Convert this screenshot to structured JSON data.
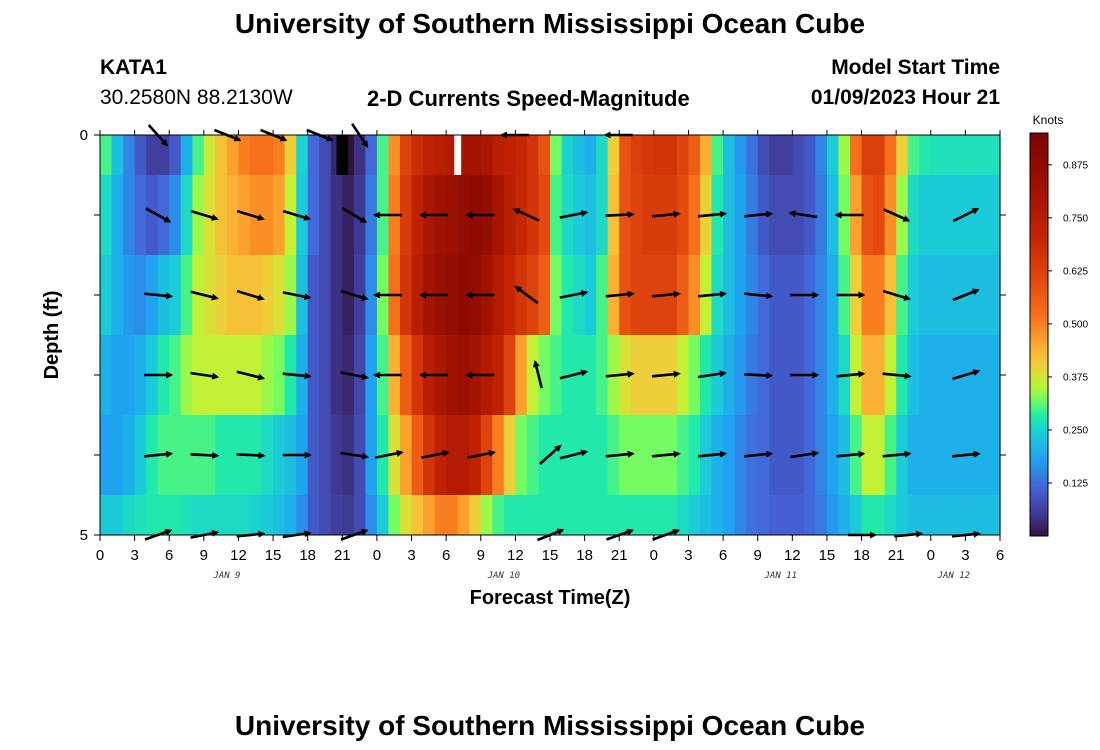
{
  "header": {
    "title": "University of Southern Mississippi Ocean Cube",
    "station_id": "KATA1",
    "station_coords": "30.2580N  88.2130W",
    "plot_title": "2-D Currents Speed-Magnitude",
    "model_start_label": "Model Start Time",
    "model_start_value": "01/09/2023 Hour 21"
  },
  "footer": {
    "title": "University of Southern Mississippi Ocean Cube"
  },
  "chart_data": {
    "type": "heatmap",
    "title": "2-D Currents Speed-Magnitude",
    "xlabel": "Forecast Time(Z)",
    "ylabel": "Depth (ft)",
    "colorbar_label": "Knots",
    "colorbar_ticks": [
      0.125,
      0.25,
      0.375,
      0.5,
      0.625,
      0.75,
      0.875
    ],
    "colorbar_tick_labels": [
      "0.125",
      "0.250",
      "0.375",
      "0.500",
      "0.625",
      "0.750",
      "0.875"
    ],
    "colorbar_range": [
      0,
      0.95
    ],
    "ylim": [
      0,
      5
    ],
    "y_tick_labels": [
      {
        "v": 0,
        "label": "0"
      },
      {
        "v": 5,
        "label": "5"
      }
    ],
    "y_minor_ticks": [
      1,
      2,
      3,
      4
    ],
    "xlim": [
      0,
      78
    ],
    "x_tick_hours": [
      0,
      3,
      6,
      9,
      12,
      15,
      18,
      21,
      24,
      27,
      30,
      33,
      36,
      39,
      42,
      45,
      48,
      51,
      54,
      57,
      60,
      63,
      66,
      69,
      72,
      75,
      78
    ],
    "x_tick_labels": [
      "0",
      "3",
      "6",
      "9",
      "12",
      "15",
      "18",
      "21",
      "0",
      "3",
      "6",
      "9",
      "12",
      "15",
      "18",
      "21",
      "0",
      "3",
      "6",
      "9",
      "12",
      "15",
      "18",
      "21",
      "0",
      "3",
      "6"
    ],
    "day_labels": [
      {
        "hour": 11,
        "label": "JAN 9"
      },
      {
        "hour": 35,
        "label": "JAN 10"
      },
      {
        "hour": 59,
        "label": "JAN 11"
      },
      {
        "hour": 74,
        "label": "JAN 12"
      }
    ],
    "depth_layers": [
      {
        "top": 0,
        "bottom": 0.5,
        "label_depth": 0
      },
      {
        "top": 0.5,
        "bottom": 1.5,
        "label_depth": 1
      },
      {
        "top": 1.5,
        "bottom": 2.5,
        "label_depth": 2
      },
      {
        "top": 2.5,
        "bottom": 3.5,
        "label_depth": 3
      },
      {
        "top": 3.5,
        "bottom": 4.5,
        "label_depth": 4
      },
      {
        "top": 4.5,
        "bottom": 5,
        "label_depth": 5
      }
    ],
    "speed_hours": [
      0,
      1,
      2,
      3,
      4,
      5,
      6,
      7,
      8,
      9,
      10,
      11,
      12,
      13,
      14,
      15,
      16,
      17,
      18,
      19,
      20,
      21,
      22,
      23,
      24,
      25,
      26,
      27,
      28,
      29,
      30,
      31,
      32,
      33,
      34,
      35,
      36,
      37,
      38,
      39,
      40,
      41,
      42,
      43,
      44,
      45,
      46,
      47,
      48,
      49,
      50,
      51,
      52,
      53,
      54,
      55,
      56,
      57,
      58,
      59,
      60,
      61,
      62,
      63,
      64,
      65,
      66,
      67,
      68,
      69,
      70,
      71,
      72,
      73,
      74,
      75,
      76,
      77
    ],
    "speed_knots": [
      [
        0.3,
        0.22,
        0.15,
        0.1,
        0.06,
        0.06,
        0.1,
        0.2,
        0.3,
        0.37,
        0.42,
        0.46,
        0.5,
        0.52,
        0.52,
        0.5,
        0.4,
        0.25,
        0.12,
        0.08,
        0.03,
        0.0,
        0.04,
        0.12,
        0.3,
        0.48,
        0.62,
        0.68,
        0.72,
        0.74,
        0.76,
        0.8,
        0.8,
        0.78,
        0.74,
        0.72,
        0.7,
        0.66,
        0.58,
        0.32,
        0.25,
        0.22,
        0.2,
        0.26,
        0.4,
        0.58,
        0.63,
        0.65,
        0.66,
        0.66,
        0.62,
        0.56,
        0.44,
        0.3,
        0.22,
        0.17,
        0.13,
        0.08,
        0.06,
        0.06,
        0.08,
        0.1,
        0.15,
        0.24,
        0.34,
        0.52,
        0.63,
        0.63,
        0.52,
        0.4,
        0.3,
        0.28,
        0.27,
        0.27,
        0.27,
        0.27,
        0.27,
        0.27
      ],
      [
        0.26,
        0.2,
        0.15,
        0.12,
        0.1,
        0.12,
        0.16,
        0.26,
        0.34,
        0.38,
        0.42,
        0.44,
        0.46,
        0.48,
        0.48,
        0.46,
        0.36,
        0.24,
        0.12,
        0.08,
        0.04,
        0.02,
        0.05,
        0.14,
        0.3,
        0.5,
        0.64,
        0.72,
        0.78,
        0.82,
        0.84,
        0.86,
        0.88,
        0.86,
        0.8,
        0.74,
        0.7,
        0.66,
        0.6,
        0.3,
        0.26,
        0.24,
        0.22,
        0.26,
        0.42,
        0.58,
        0.62,
        0.64,
        0.64,
        0.64,
        0.6,
        0.52,
        0.4,
        0.28,
        0.22,
        0.18,
        0.14,
        0.1,
        0.08,
        0.08,
        0.08,
        0.1,
        0.14,
        0.22,
        0.32,
        0.46,
        0.58,
        0.6,
        0.48,
        0.34,
        0.26,
        0.24,
        0.24,
        0.24,
        0.24,
        0.24,
        0.24,
        0.24
      ],
      [
        0.24,
        0.2,
        0.17,
        0.16,
        0.18,
        0.22,
        0.24,
        0.3,
        0.36,
        0.38,
        0.4,
        0.42,
        0.42,
        0.42,
        0.4,
        0.38,
        0.34,
        0.22,
        0.1,
        0.08,
        0.04,
        0.02,
        0.06,
        0.16,
        0.32,
        0.52,
        0.66,
        0.74,
        0.8,
        0.84,
        0.86,
        0.88,
        0.86,
        0.82,
        0.76,
        0.7,
        0.66,
        0.62,
        0.56,
        0.32,
        0.28,
        0.26,
        0.24,
        0.3,
        0.44,
        0.58,
        0.62,
        0.62,
        0.62,
        0.62,
        0.56,
        0.48,
        0.36,
        0.26,
        0.22,
        0.18,
        0.15,
        0.12,
        0.1,
        0.1,
        0.1,
        0.12,
        0.15,
        0.2,
        0.3,
        0.4,
        0.5,
        0.5,
        0.42,
        0.3,
        0.24,
        0.22,
        0.22,
        0.22,
        0.22,
        0.22,
        0.22,
        0.22
      ],
      [
        0.2,
        0.18,
        0.18,
        0.2,
        0.24,
        0.28,
        0.3,
        0.34,
        0.36,
        0.36,
        0.36,
        0.36,
        0.36,
        0.36,
        0.34,
        0.32,
        0.28,
        0.2,
        0.1,
        0.08,
        0.04,
        0.03,
        0.07,
        0.18,
        0.3,
        0.44,
        0.56,
        0.66,
        0.74,
        0.78,
        0.82,
        0.84,
        0.8,
        0.76,
        0.72,
        0.62,
        0.46,
        0.36,
        0.32,
        0.3,
        0.28,
        0.28,
        0.28,
        0.3,
        0.34,
        0.38,
        0.4,
        0.4,
        0.4,
        0.4,
        0.36,
        0.32,
        0.28,
        0.24,
        0.2,
        0.17,
        0.14,
        0.12,
        0.1,
        0.1,
        0.1,
        0.12,
        0.15,
        0.2,
        0.26,
        0.36,
        0.44,
        0.44,
        0.36,
        0.28,
        0.22,
        0.2,
        0.2,
        0.2,
        0.2,
        0.2,
        0.2,
        0.2
      ],
      [
        0.18,
        0.18,
        0.2,
        0.24,
        0.28,
        0.3,
        0.3,
        0.3,
        0.3,
        0.3,
        0.28,
        0.28,
        0.28,
        0.28,
        0.26,
        0.24,
        0.22,
        0.18,
        0.1,
        0.08,
        0.05,
        0.04,
        0.08,
        0.18,
        0.28,
        0.38,
        0.46,
        0.56,
        0.66,
        0.72,
        0.76,
        0.76,
        0.72,
        0.62,
        0.5,
        0.4,
        0.32,
        0.3,
        0.28,
        0.28,
        0.28,
        0.28,
        0.28,
        0.28,
        0.3,
        0.32,
        0.32,
        0.32,
        0.32,
        0.32,
        0.3,
        0.28,
        0.24,
        0.2,
        0.18,
        0.15,
        0.13,
        0.12,
        0.1,
        0.1,
        0.1,
        0.12,
        0.15,
        0.18,
        0.22,
        0.3,
        0.36,
        0.36,
        0.3,
        0.24,
        0.2,
        0.2,
        0.2,
        0.2,
        0.2,
        0.2,
        0.2,
        0.2
      ],
      [
        0.24,
        0.24,
        0.26,
        0.27,
        0.28,
        0.28,
        0.28,
        0.27,
        0.26,
        0.26,
        0.26,
        0.26,
        0.26,
        0.25,
        0.24,
        0.22,
        0.2,
        0.16,
        0.1,
        0.08,
        0.06,
        0.05,
        0.08,
        0.16,
        0.24,
        0.32,
        0.38,
        0.42,
        0.46,
        0.5,
        0.5,
        0.46,
        0.4,
        0.34,
        0.3,
        0.28,
        0.28,
        0.28,
        0.28,
        0.28,
        0.28,
        0.28,
        0.28,
        0.28,
        0.28,
        0.28,
        0.28,
        0.28,
        0.28,
        0.28,
        0.26,
        0.24,
        0.22,
        0.2,
        0.18,
        0.15,
        0.13,
        0.12,
        0.11,
        0.11,
        0.11,
        0.12,
        0.14,
        0.17,
        0.2,
        0.24,
        0.28,
        0.28,
        0.26,
        0.24,
        0.22,
        0.22,
        0.22,
        0.22,
        0.22,
        0.22,
        0.22,
        0.22
      ]
    ],
    "missing_blocks": [
      {
        "hour_start": 20.5,
        "hour_end": 21.5,
        "depth_start": 0,
        "depth_end": 0.5,
        "fill": "#000000"
      },
      {
        "hour_start": 30.7,
        "hour_end": 31.3,
        "depth_start": 0,
        "depth_end": 0.5,
        "fill": "#ffffff"
      }
    ],
    "vector_hours": [
      6,
      9,
      12,
      15,
      18,
      20,
      24,
      27,
      30,
      33,
      36,
      39,
      42,
      45,
      48,
      51,
      54,
      57,
      60,
      63,
      66,
      69,
      72,
      75,
      78
    ],
    "vectors": [
      {
        "depth": 0,
        "items": [
          {
            "h": 5,
            "dx": 0.9,
            "dy": 1.0
          },
          {
            "h": 11,
            "dx": 1.0,
            "dy": 0.4
          },
          {
            "h": 15,
            "dx": 1.0,
            "dy": 0.4
          },
          {
            "h": 19,
            "dx": 1.0,
            "dy": 0.4
          },
          {
            "h": 22.5,
            "dx": 0.6,
            "dy": 0.9
          },
          {
            "h": 36,
            "dx": -0.6,
            "dy": 0.0
          },
          {
            "h": 45,
            "dx": -0.5,
            "dy": 0.0
          }
        ]
      },
      {
        "depth": 1,
        "items": [
          {
            "h": 5,
            "dx": 1.0,
            "dy": 0.55
          },
          {
            "h": 9,
            "dx": 1.0,
            "dy": 0.3
          },
          {
            "h": 13,
            "dx": 1.0,
            "dy": 0.3
          },
          {
            "h": 17,
            "dx": 1.0,
            "dy": 0.3
          },
          {
            "h": 22,
            "dx": 1.0,
            "dy": 0.6
          },
          {
            "h": 25,
            "dx": -1.0,
            "dy": 0.0
          },
          {
            "h": 29,
            "dx": -1.0,
            "dy": 0.0
          },
          {
            "h": 33,
            "dx": -1.0,
            "dy": 0.0
          },
          {
            "h": 37,
            "dx": -1.0,
            "dy": -0.45
          },
          {
            "h": 41,
            "dx": 1.0,
            "dy": -0.2
          },
          {
            "h": 45,
            "dx": 1.0,
            "dy": -0.05
          },
          {
            "h": 49,
            "dx": 1.0,
            "dy": -0.1
          },
          {
            "h": 53,
            "dx": 1.0,
            "dy": -0.1
          },
          {
            "h": 57,
            "dx": 1.0,
            "dy": -0.1
          },
          {
            "h": 61,
            "dx": -1.0,
            "dy": -0.15
          },
          {
            "h": 65,
            "dx": -1.0,
            "dy": 0.0
          },
          {
            "h": 69,
            "dx": 1.0,
            "dy": 0.45
          },
          {
            "h": 75,
            "dx": 1.0,
            "dy": -0.5
          }
        ]
      },
      {
        "depth": 2,
        "items": [
          {
            "h": 5,
            "dx": 1.0,
            "dy": 0.1
          },
          {
            "h": 9,
            "dx": 1.0,
            "dy": 0.25
          },
          {
            "h": 13,
            "dx": 1.0,
            "dy": 0.3
          },
          {
            "h": 17,
            "dx": 1.0,
            "dy": 0.2
          },
          {
            "h": 22,
            "dx": 1.0,
            "dy": 0.3
          },
          {
            "h": 25,
            "dx": -1.0,
            "dy": 0.0
          },
          {
            "h": 29,
            "dx": -1.0,
            "dy": 0.0
          },
          {
            "h": 33,
            "dx": -1.0,
            "dy": 0.0
          },
          {
            "h": 37,
            "dx": -0.8,
            "dy": -0.6
          },
          {
            "h": 41,
            "dx": 1.0,
            "dy": -0.2
          },
          {
            "h": 45,
            "dx": 1.0,
            "dy": -0.1
          },
          {
            "h": 49,
            "dx": 1.0,
            "dy": -0.1
          },
          {
            "h": 53,
            "dx": 1.0,
            "dy": -0.1
          },
          {
            "h": 57,
            "dx": 1.0,
            "dy": 0.1
          },
          {
            "h": 61,
            "dx": 1.0,
            "dy": 0.0
          },
          {
            "h": 65,
            "dx": 1.0,
            "dy": 0.0
          },
          {
            "h": 69,
            "dx": 1.0,
            "dy": 0.3
          },
          {
            "h": 75,
            "dx": 1.0,
            "dy": -0.4
          }
        ]
      },
      {
        "depth": 3,
        "items": [
          {
            "h": 5,
            "dx": 1.0,
            "dy": 0.0
          },
          {
            "h": 9,
            "dx": 1.0,
            "dy": 0.15
          },
          {
            "h": 13,
            "dx": 1.0,
            "dy": 0.25
          },
          {
            "h": 17,
            "dx": 1.0,
            "dy": 0.1
          },
          {
            "h": 22,
            "dx": 1.0,
            "dy": 0.2
          },
          {
            "h": 25,
            "dx": -1.0,
            "dy": 0.0
          },
          {
            "h": 29,
            "dx": -1.0,
            "dy": 0.0
          },
          {
            "h": 33,
            "dx": -1.0,
            "dy": 0.0
          },
          {
            "h": 38,
            "dx": -0.25,
            "dy": -1.0
          },
          {
            "h": 41,
            "dx": 1.0,
            "dy": -0.25
          },
          {
            "h": 45,
            "dx": 1.0,
            "dy": -0.1
          },
          {
            "h": 49,
            "dx": 1.0,
            "dy": -0.1
          },
          {
            "h": 53,
            "dx": 1.0,
            "dy": -0.15
          },
          {
            "h": 57,
            "dx": 1.0,
            "dy": 0.05
          },
          {
            "h": 61,
            "dx": 1.0,
            "dy": 0.0
          },
          {
            "h": 65,
            "dx": 1.0,
            "dy": -0.1
          },
          {
            "h": 69,
            "dx": 1.0,
            "dy": 0.1
          },
          {
            "h": 75,
            "dx": 1.0,
            "dy": -0.3
          }
        ]
      },
      {
        "depth": 4,
        "items": [
          {
            "h": 5,
            "dx": 1.0,
            "dy": -0.1
          },
          {
            "h": 9,
            "dx": 1.0,
            "dy": 0.05
          },
          {
            "h": 13,
            "dx": 1.0,
            "dy": 0.05
          },
          {
            "h": 17,
            "dx": 1.0,
            "dy": 0.0
          },
          {
            "h": 22,
            "dx": 1.0,
            "dy": 0.15
          },
          {
            "h": 25,
            "dx": 1.0,
            "dy": -0.2
          },
          {
            "h": 29,
            "dx": 1.0,
            "dy": -0.2
          },
          {
            "h": 33,
            "dx": 1.0,
            "dy": -0.2
          },
          {
            "h": 39,
            "dx": 0.9,
            "dy": -0.8
          },
          {
            "h": 41,
            "dx": 1.0,
            "dy": -0.25
          },
          {
            "h": 45,
            "dx": 1.0,
            "dy": -0.1
          },
          {
            "h": 49,
            "dx": 1.0,
            "dy": -0.1
          },
          {
            "h": 53,
            "dx": 1.0,
            "dy": -0.1
          },
          {
            "h": 57,
            "dx": 1.0,
            "dy": -0.1
          },
          {
            "h": 61,
            "dx": 1.0,
            "dy": -0.15
          },
          {
            "h": 65,
            "dx": 1.0,
            "dy": -0.1
          },
          {
            "h": 69,
            "dx": 1.0,
            "dy": -0.1
          },
          {
            "h": 75,
            "dx": 1.0,
            "dy": -0.1
          }
        ]
      },
      {
        "depth": 5,
        "items": [
          {
            "h": 5,
            "dx": 1.0,
            "dy": -0.35
          },
          {
            "h": 9,
            "dx": 1.0,
            "dy": -0.2
          },
          {
            "h": 13,
            "dx": 1.0,
            "dy": -0.1
          },
          {
            "h": 17,
            "dx": 1.0,
            "dy": -0.15
          },
          {
            "h": 22,
            "dx": 1.0,
            "dy": -0.35
          },
          {
            "h": 39,
            "dx": 1.0,
            "dy": -0.4
          },
          {
            "h": 45,
            "dx": 1.0,
            "dy": -0.35
          },
          {
            "h": 49,
            "dx": 1.0,
            "dy": -0.35
          },
          {
            "h": 66,
            "dx": 1.0,
            "dy": 0.0
          },
          {
            "h": 70,
            "dx": 1.0,
            "dy": -0.1
          },
          {
            "h": 75,
            "dx": 1.0,
            "dy": -0.1
          }
        ]
      }
    ]
  }
}
